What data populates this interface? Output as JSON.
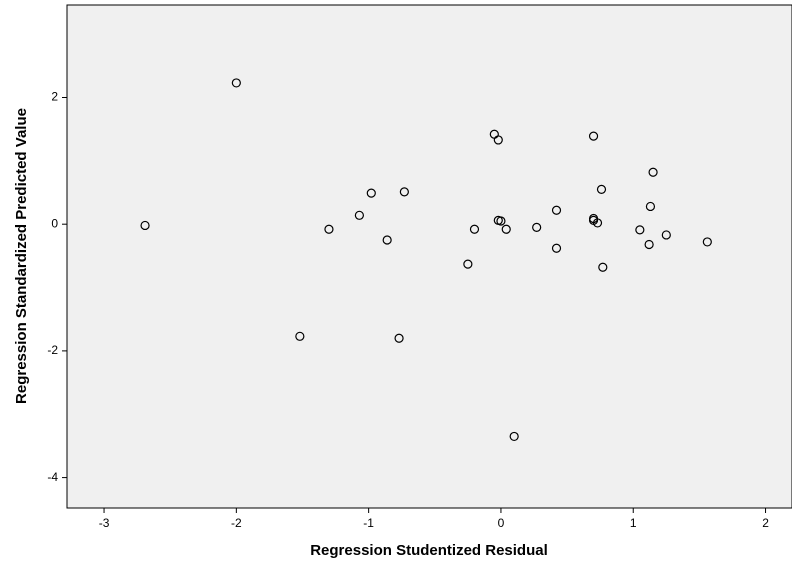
{
  "chart_data": {
    "type": "scatter",
    "x_label": "Regression Studentized Residual",
    "y_label": "Regression Standardized Predicted Value",
    "x": [
      -2.69,
      -2.0,
      -1.52,
      -1.3,
      -1.07,
      -0.98,
      -0.86,
      -0.77,
      -0.73,
      -0.25,
      -0.2,
      -0.05,
      -0.02,
      -0.02,
      0.0,
      0.04,
      0.1,
      0.27,
      0.42,
      0.42,
      0.7,
      0.7,
      0.73,
      0.7,
      0.76,
      0.77,
      1.05,
      1.13,
      1.15,
      1.12,
      1.25,
      1.56
    ],
    "values": [
      -0.02,
      2.23,
      -1.77,
      -0.08,
      0.14,
      0.49,
      -0.25,
      -1.8,
      0.51,
      -0.63,
      -0.08,
      1.42,
      1.33,
      0.06,
      0.05,
      -0.08,
      -3.35,
      -0.05,
      0.22,
      -0.38,
      0.09,
      0.06,
      0.02,
      1.39,
      0.55,
      -0.68,
      -0.09,
      0.28,
      0.82,
      -0.32,
      -0.17,
      -0.28
    ],
    "color": "#000000",
    "xlim": [
      -3.28,
      2.2
    ],
    "ylim": [
      -4.48,
      3.46
    ],
    "xticks": [
      -3,
      -2,
      -1,
      0,
      1,
      2
    ],
    "yticks": [
      -4,
      -2,
      0,
      2
    ],
    "grid": false
  }
}
